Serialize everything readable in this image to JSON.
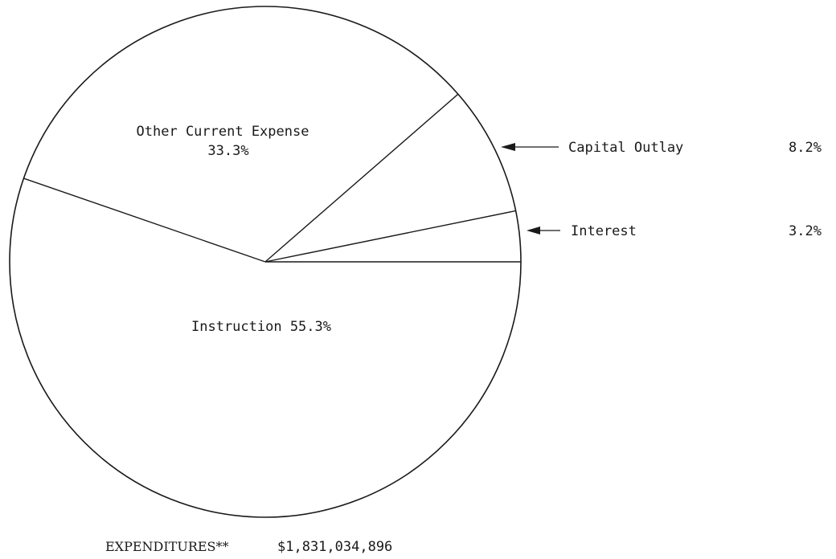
{
  "chart_data": {
    "type": "pie",
    "slices": [
      {
        "label": "Instruction",
        "value": 55.3,
        "display": "Instruction 55.3%"
      },
      {
        "label": "Other Current Expense",
        "value": 33.3,
        "display": "33.3%"
      },
      {
        "label": "Capital Outlay",
        "value": 8.2,
        "display": "8.2%"
      },
      {
        "label": "Interest",
        "value": 3.2,
        "display": "3.2%"
      }
    ]
  },
  "footer": {
    "label": "EXPENDITURES**",
    "value": "$1,831,034,896"
  }
}
